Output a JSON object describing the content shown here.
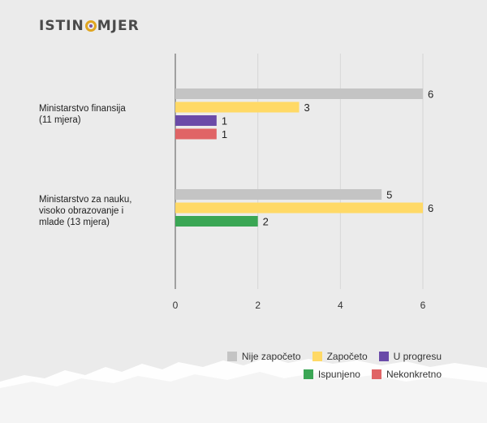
{
  "brand": {
    "left": "ISTIN",
    "right": "MJER"
  },
  "chart_data": {
    "type": "bar",
    "orientation": "horizontal",
    "categories": [
      "Ministarstvo finansija\n(11 mjera)",
      "Ministarstvo za nauku,\nvisoko obrazovanje i\nmlade (13 mjera)"
    ],
    "series": [
      {
        "name": "Nije započeto",
        "color": "#c4c4c4",
        "values": [
          6,
          5
        ]
      },
      {
        "name": "Započeto",
        "color": "#ffd966",
        "values": [
          3,
          6
        ]
      },
      {
        "name": "U progresu",
        "color": "#6a4aa8",
        "values": [
          1,
          null
        ]
      },
      {
        "name": "Ispunjeno",
        "color": "#3aa654",
        "values": [
          null,
          2
        ]
      },
      {
        "name": "Nekonkretno",
        "color": "#e06466",
        "values": [
          1,
          null
        ]
      }
    ],
    "xlim": [
      0,
      6
    ],
    "xticks": [
      "0",
      "2",
      "4",
      "6"
    ],
    "grid": true,
    "legend": "bottom-right"
  }
}
